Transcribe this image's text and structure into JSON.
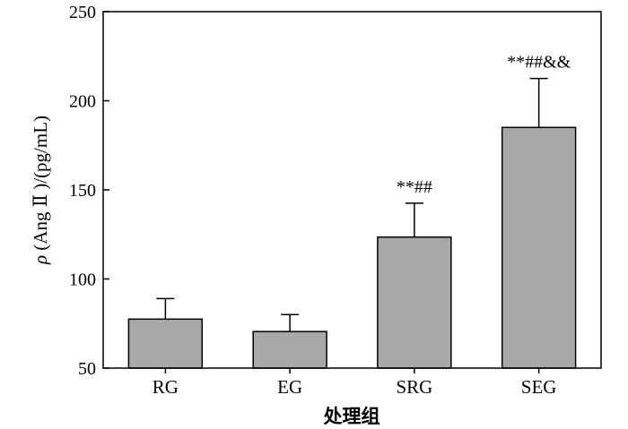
{
  "chart_data": {
    "type": "bar",
    "categories": [
      "RG",
      "EG",
      "SRG",
      "SEG"
    ],
    "values": [
      77.5,
      70.5,
      123.5,
      185.0
    ],
    "errors": [
      11.5,
      9.5,
      19.0,
      27.5
    ],
    "annotations": [
      "",
      "",
      "**##",
      "**##&&"
    ],
    "xlabel": "处理组",
    "ylabel": {
      "symbol": "ρ",
      "text": " (Ang Ⅱ )/(pg/mL)"
    },
    "ylim": [
      50,
      250
    ],
    "yticks": [
      50,
      100,
      150,
      200,
      250
    ],
    "grid": false,
    "bar_color": "#a9a9a9",
    "edge_color": "#000000"
  }
}
